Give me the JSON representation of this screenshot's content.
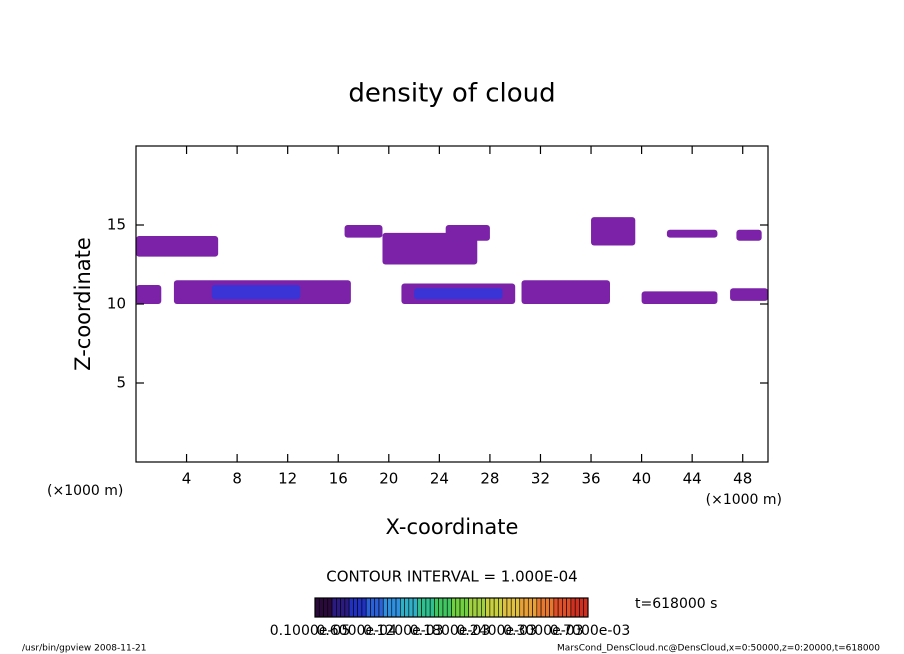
{
  "chart_data": {
    "type": "contour",
    "title": "density of cloud",
    "xlabel": "X-coordinate",
    "ylabel": "Z-coordinate",
    "xunit_left": "(×1000 m)",
    "xunit_right": "(×1000 m)",
    "xlim": [
      0,
      50
    ],
    "ylim": [
      0,
      20
    ],
    "xticks": [
      4,
      8,
      12,
      16,
      20,
      24,
      28,
      32,
      36,
      40,
      44,
      48
    ],
    "yticks": [
      5,
      10,
      15
    ],
    "regions": [
      {
        "x": [
          0,
          6.5
        ],
        "z": [
          13,
          14.3
        ],
        "level": 0.0001,
        "color": "#7b22a8"
      },
      {
        "x": [
          0,
          2
        ],
        "z": [
          10,
          11.2
        ],
        "level": 0.0001,
        "color": "#7b22a8"
      },
      {
        "x": [
          3,
          17
        ],
        "z": [
          10,
          11.5
        ],
        "level": 0.0001,
        "color": "#7b22a8"
      },
      {
        "x": [
          6,
          13
        ],
        "z": [
          10.3,
          11.2
        ],
        "level": 0.0004,
        "color": "#3a34d6"
      },
      {
        "x": [
          16.5,
          19.5
        ],
        "z": [
          14.2,
          15
        ],
        "level": 0.0001,
        "color": "#7b22a8"
      },
      {
        "x": [
          19.5,
          27
        ],
        "z": [
          12.5,
          14.5
        ],
        "level": 0.0001,
        "color": "#7b22a8"
      },
      {
        "x": [
          24.5,
          28
        ],
        "z": [
          14,
          15
        ],
        "level": 0.0001,
        "color": "#7b22a8"
      },
      {
        "x": [
          21,
          30
        ],
        "z": [
          10,
          11.3
        ],
        "level": 0.0001,
        "color": "#7b22a8"
      },
      {
        "x": [
          22,
          29
        ],
        "z": [
          10.3,
          11
        ],
        "level": 0.0004,
        "color": "#3a34d6"
      },
      {
        "x": [
          30.5,
          37.5
        ],
        "z": [
          10,
          11.5
        ],
        "level": 0.0001,
        "color": "#7b22a8"
      },
      {
        "x": [
          36,
          39.5
        ],
        "z": [
          13.7,
          15.5
        ],
        "level": 0.0001,
        "color": "#7b22a8"
      },
      {
        "x": [
          40,
          46
        ],
        "z": [
          10,
          10.8
        ],
        "level": 0.0001,
        "color": "#7b22a8"
      },
      {
        "x": [
          42,
          46
        ],
        "z": [
          14.2,
          14.7
        ],
        "level": 0.0001,
        "color": "#7b22a8"
      },
      {
        "x": [
          47.5,
          49.5
        ],
        "z": [
          14,
          14.7
        ],
        "level": 0.0001,
        "color": "#7b22a8"
      },
      {
        "x": [
          47,
          50
        ],
        "z": [
          10.2,
          11
        ],
        "level": 0.0001,
        "color": "#7b22a8"
      }
    ],
    "contour_interval": "CONTOUR INTERVAL = 1.000E-04",
    "time_label": "t=618000 s",
    "colorbar": {
      "colors": [
        "#2a0a3a",
        "#2b1a80",
        "#2030c0",
        "#2a60d8",
        "#3090e0",
        "#30b0c8",
        "#30c090",
        "#40c860",
        "#70d040",
        "#a0d040",
        "#c8d040",
        "#e0c040",
        "#e8a038",
        "#e87830",
        "#e05028",
        "#d03020"
      ],
      "labels": [
        "0.1000e-05",
        "0.6000e-04",
        "0.1200e-03",
        "0.1800e-03",
        "0.2400e-03",
        "0.3000e-03",
        "0.7000e-03"
      ]
    },
    "footer_left": "/usr/bin/gpview   2008-11-21",
    "footer_right": "MarsCond_DensCloud.nc@DensCloud,x=0:50000,z=0:20000,t=618000"
  }
}
